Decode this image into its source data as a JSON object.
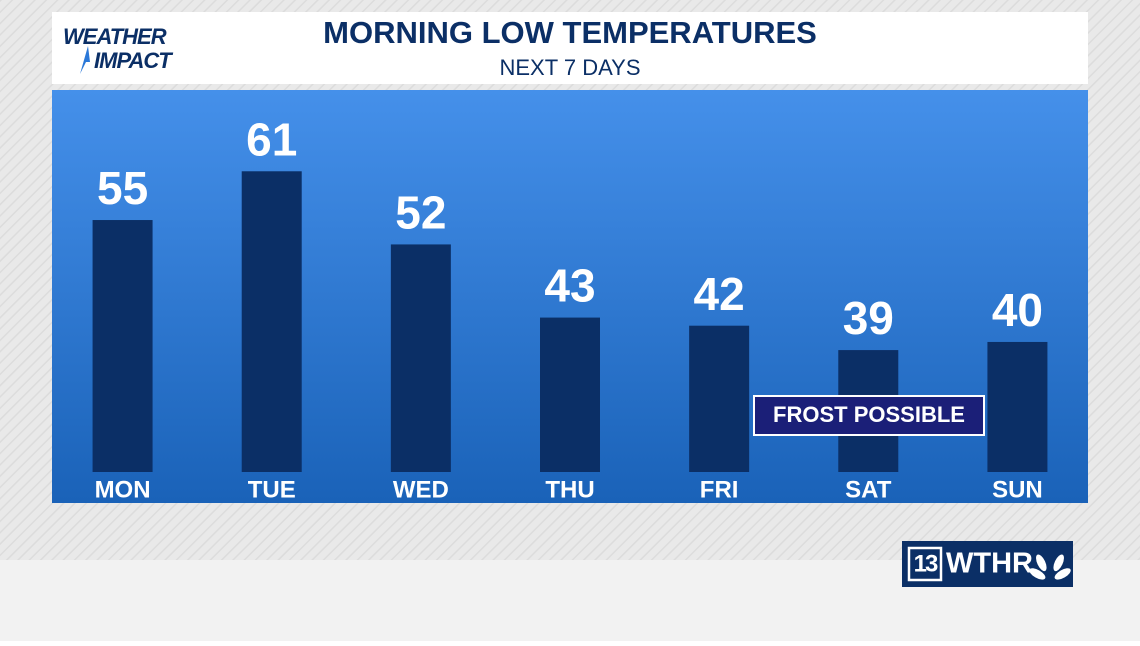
{
  "chart_data": {
    "type": "bar",
    "title": "MORNING LOW TEMPERATURES",
    "subtitle": "NEXT 7 DAYS",
    "categories": [
      "MON",
      "TUE",
      "WED",
      "THU",
      "FRI",
      "SAT",
      "SUN"
    ],
    "values": [
      55,
      61,
      52,
      43,
      42,
      39,
      40
    ],
    "color": "#0b2f66",
    "ylim": [
      24,
      71
    ],
    "annotation": "FROST POSSIBLE"
  },
  "branding": {
    "show_top": "WEATHER",
    "show_bottom": "IMPACT",
    "channel": "13",
    "station": "WTHR"
  }
}
